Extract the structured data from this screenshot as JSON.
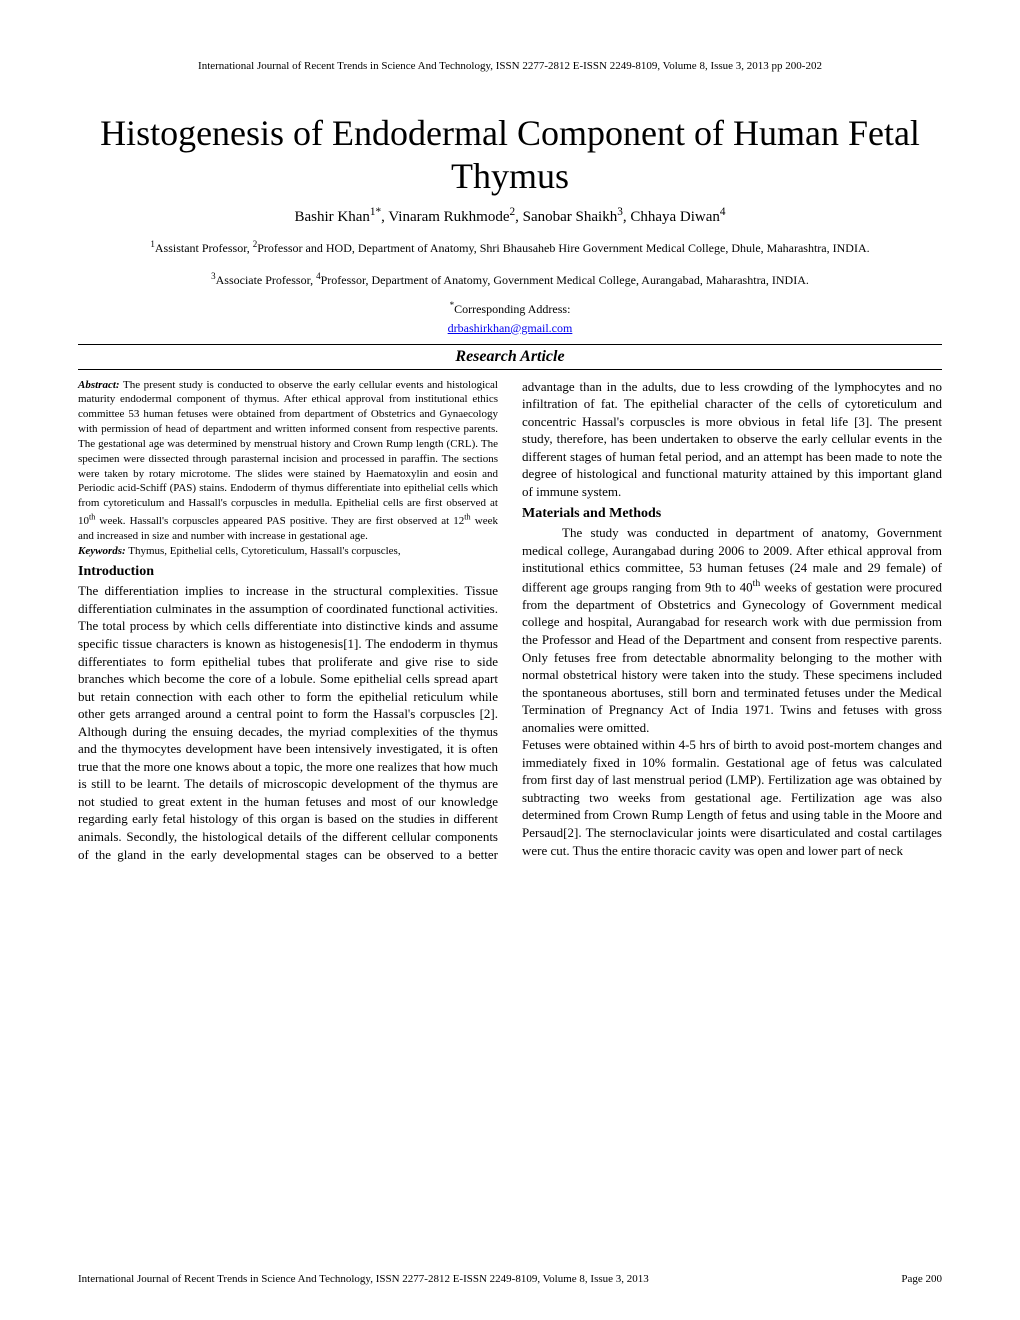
{
  "header": "International Journal of Recent Trends in Science And Technology, ISSN 2277-2812 E-ISSN 2249-8109, Volume 8, Issue 3, 2013 pp 200-202",
  "title": "Histogenesis of Endodermal Component of Human Fetal Thymus",
  "authors_html": "Bashir Khan<sup>1*</sup>, Vinaram Rukhmode<sup>2</sup>, Sanobar Shaikh<sup>3</sup>, Chhaya Diwan<sup>4</sup>",
  "affiliation1_html": "<sup>1</sup>Assistant Professor, <sup>2</sup>Professor and HOD, Department of Anatomy, Shri Bhausaheb Hire Government Medical College, Dhule, Maharashtra, INDIA.",
  "affiliation2_html": "<sup>3</sup>Associate Professor, <sup>4</sup>Professor, Department of Anatomy, Government Medical College, Aurangabad, Maharashtra, INDIA.",
  "corresponding_html": "<sup>*</sup>Corresponding Address:",
  "email": "drbashirkhan@gmail.com",
  "article_type": "Research Article",
  "abstract_label": "Abstract:",
  "abstract_text_html": " The present study is conducted to observe the early cellular events and histological maturity endodermal component of thymus. After ethical approval from institutional ethics committee 53 human fetuses were obtained from department of Obstetrics and Gynaecology with permission of head of department and written informed consent from respective parents. The gestational age was determined by menstrual history and Crown Rump length (CRL). The specimen were dissected through parasternal incision and processed in paraffin. The sections were taken by rotary microtome. The slides were stained by Haematoxylin and eosin and Periodic acid-Schiff (PAS) stains. Endoderm of thymus differentiate into epithelial cells which from cytoreticulum and Hassall's corpuscles in medulla. Epithelial cells are first observed at 10<sup>th</sup> week. Hassall's corpuscles appeared PAS positive. They are first observed at 12<sup>th</sup> week and increased in size and number with increase in gestational age.",
  "keywords_label": "Keywords:",
  "keywords_text": " Thymus, Epithelial cells, Cytoreticulum, Hassall's corpuscles,",
  "introduction_heading": "Introduction",
  "introduction_text": "The differentiation implies to increase in the structural complexities. Tissue differentiation culminates in the assumption of coordinated functional activities. The total process by which cells differentiate into distinctive kinds and assume specific tissue characters is known as histogenesis[1]. The endoderm in thymus differentiates to form epithelial tubes that proliferate and give rise to side branches which become the core of a lobule. Some epithelial cells spread apart but retain connection with each other to form the epithelial reticulum while other gets arranged around a central point to form the Hassal's corpuscles [2]. Although during the ensuing decades, the myriad complexities of the thymus and the thymocytes development have been intensively investigated, it is often true that the more one knows about a topic, the more one realizes that how much is still to be learnt. The details of microscopic development of the thymus are not studied to great extent in the human fetuses and most of our knowledge regarding early fetal histology of this organ is based on the studies in different animals. Secondly, the histological details of the different cellular components of the gland in the early developmental stages can be observed to a better advantage than in the adults, due to less crowding of the lymphocytes and no infiltration of fat. The epithelial character of the cells of cytoreticulum and concentric Hassal's corpuscles is more obvious in fetal life [3]. The present study, therefore, has been undertaken to observe the early cellular events in the different stages of human fetal period, and an attempt has been made to note the degree of histological and functional maturity attained by this important gland of immune system.",
  "materials_heading": "Materials and Methods",
  "materials_text_html": "The study was conducted in department of anatomy, Government medical college, Aurangabad during 2006 to 2009. After ethical approval from institutional ethics committee, 53 human fetuses (24 male and 29 female) of different age groups ranging from 9th to 40<sup>th</sup> weeks of gestation were procured from the department of Obstetrics and Gynecology of Government medical college and hospital, Aurangabad for research work with due permission from the Professor and Head of the Department and consent from respective parents. Only fetuses free from detectable abnormality belonging to the mother with normal obstetrical history were taken into the study. These specimens included the spontaneous abortuses, still born and terminated fetuses under the Medical Termination of Pregnancy Act of India 1971. Twins and fetuses with gross anomalies were omitted.",
  "materials_text2": "Fetuses were obtained within 4-5 hrs of birth to avoid post-mortem changes and immediately fixed in 10% formalin. Gestational age of fetus was calculated from first day of last menstrual period (LMP). Fertilization age was obtained by subtracting two weeks from gestational age. Fertilization age was also determined from Crown Rump Length of fetus and using table in the Moore and Persaud[2]. The sternoclavicular joints were disarticulated and costal cartilages were cut. Thus the entire thoracic cavity was open and lower part of neck",
  "footer_left": "International Journal of Recent Trends in Science And Technology, ISSN 2277-2812 E-ISSN 2249-8109, Volume 8, Issue 3, 2013",
  "footer_right": "Page 200"
}
